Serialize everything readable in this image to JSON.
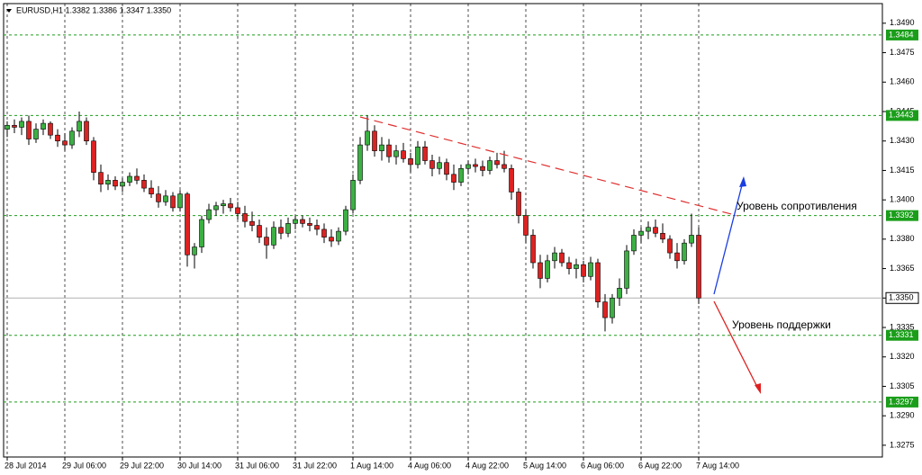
{
  "chart_data": {
    "type": "candlestick",
    "title": "EURUSD,H1  1.3382 1.3386 1.3347 1.3350",
    "up_color": "#3cb043",
    "down_color": "#dd2222",
    "ylim": [
      1.3269,
      1.35
    ],
    "yticks": [
      {
        "value": 1.349,
        "label": "1.3490"
      },
      1.3475,
      {
        "value": 1.346,
        "label": "1.3460"
      },
      1.3445,
      {
        "value": 1.343,
        "label": "1.3430"
      },
      1.3415,
      {
        "value": 1.34,
        "label": "1.3400"
      },
      {
        "value": 1.338,
        "label": "1.3380"
      },
      1.3365,
      {
        "value": 1.335,
        "label": "1.3350"
      },
      1.3335,
      {
        "value": 1.332,
        "label": "1.3320"
      },
      1.3305,
      {
        "value": 1.329,
        "label": "1.3290"
      },
      1.3275
    ],
    "levels": [
      {
        "value": 1.3484,
        "label": "1.3484"
      },
      1.3443,
      1.3392,
      1.3331,
      1.3297
    ],
    "level_color": "#1a9e1a",
    "current_price": {
      "value": 1.335,
      "label": "1.3350"
    },
    "annotations": [
      "Уровень сопротивления",
      "Уровень поддержки"
    ],
    "categories": [
      "28 Jul 2014",
      null,
      null,
      null,
      null,
      null,
      null,
      null,
      "29 Jul 06:00",
      null,
      null,
      null,
      null,
      null,
      null,
      null,
      "29 Jul 22:00",
      null,
      null,
      null,
      null,
      null,
      null,
      null,
      "30 Jul 14:00",
      null,
      null,
      null,
      null,
      null,
      null,
      null,
      "31 Jul 06:00",
      null,
      null,
      null,
      null,
      null,
      null,
      null,
      "31 Jul 22:00",
      null,
      null,
      null,
      null,
      null,
      null,
      null,
      "1 Aug 14:00",
      null,
      null,
      null,
      null,
      null,
      null,
      null,
      "4 Aug 06:00",
      null,
      null,
      null,
      null,
      null,
      null,
      null,
      "4 Aug 22:00",
      null,
      null,
      null,
      null,
      null,
      null,
      null,
      "5 Aug 14:00",
      null,
      null,
      null,
      null,
      null,
      null,
      null,
      "6 Aug 06:00",
      null,
      null,
      null,
      null,
      null,
      null,
      null,
      "6 Aug 22:00",
      null,
      null,
      null,
      null,
      null,
      null,
      null,
      "7 Aug 14:00"
    ],
    "ohlc": [
      [
        1.3436,
        1.344,
        1.3432,
        1.3438
      ],
      [
        1.3438,
        1.3441,
        1.3434,
        1.3437
      ],
      [
        1.3437,
        1.3442,
        1.3433,
        1.344
      ],
      [
        1.344,
        1.3443,
        1.3428,
        1.3431
      ],
      [
        1.3431,
        1.3439,
        1.3429,
        1.3436
      ],
      [
        1.3436,
        1.3441,
        1.3433,
        1.3439
      ],
      [
        1.3439,
        1.344,
        1.3431,
        1.3433
      ],
      [
        1.3433,
        1.3436,
        1.3427,
        1.343
      ],
      [
        1.343,
        1.3434,
        1.3425,
        1.3428
      ],
      [
        1.3428,
        1.3437,
        1.3426,
        1.3435
      ],
      [
        1.3435,
        1.3445,
        1.3432,
        1.344
      ],
      [
        1.344,
        1.3442,
        1.3428,
        1.343
      ],
      [
        1.343,
        1.3432,
        1.341,
        1.3414
      ],
      [
        1.3414,
        1.3418,
        1.3404,
        1.3408
      ],
      [
        1.3408,
        1.3413,
        1.3405,
        1.341
      ],
      [
        1.341,
        1.3412,
        1.3405,
        1.3407
      ],
      [
        1.3407,
        1.3411,
        1.3404,
        1.3409
      ],
      [
        1.3409,
        1.3414,
        1.3407,
        1.3412
      ],
      [
        1.3412,
        1.3416,
        1.3408,
        1.341
      ],
      [
        1.341,
        1.3413,
        1.3404,
        1.3406
      ],
      [
        1.3406,
        1.341,
        1.3401,
        1.3403
      ],
      [
        1.3403,
        1.3407,
        1.3396,
        1.3399
      ],
      [
        1.3399,
        1.3405,
        1.3397,
        1.3402
      ],
      [
        1.3402,
        1.3404,
        1.3394,
        1.3396
      ],
      [
        1.3396,
        1.3405,
        1.3394,
        1.3403
      ],
      [
        1.3403,
        1.3404,
        1.3366,
        1.3372
      ],
      [
        1.3372,
        1.3378,
        1.3365,
        1.3376
      ],
      [
        1.3376,
        1.3392,
        1.3373,
        1.339
      ],
      [
        1.339,
        1.3398,
        1.3388,
        1.3395
      ],
      [
        1.3395,
        1.3399,
        1.3392,
        1.3397
      ],
      [
        1.3397,
        1.34,
        1.3393,
        1.3398
      ],
      [
        1.3398,
        1.3401,
        1.3394,
        1.3396
      ],
      [
        1.3396,
        1.3399,
        1.339,
        1.3393
      ],
      [
        1.3393,
        1.3397,
        1.3386,
        1.3389
      ],
      [
        1.3389,
        1.3394,
        1.3384,
        1.3387
      ],
      [
        1.3387,
        1.339,
        1.3378,
        1.3381
      ],
      [
        1.3381,
        1.3386,
        1.337,
        1.3377
      ],
      [
        1.3377,
        1.3389,
        1.3375,
        1.3386
      ],
      [
        1.3386,
        1.339,
        1.338,
        1.3383
      ],
      [
        1.3383,
        1.3391,
        1.3381,
        1.3388
      ],
      [
        1.3388,
        1.3392,
        1.3385,
        1.339
      ],
      [
        1.339,
        1.3392,
        1.3386,
        1.3388
      ],
      [
        1.3388,
        1.3391,
        1.3384,
        1.3387
      ],
      [
        1.3387,
        1.339,
        1.3382,
        1.3385
      ],
      [
        1.3385,
        1.3388,
        1.3378,
        1.3381
      ],
      [
        1.3381,
        1.3385,
        1.3376,
        1.3379
      ],
      [
        1.3379,
        1.3386,
        1.3377,
        1.3384
      ],
      [
        1.3384,
        1.3397,
        1.3382,
        1.3395
      ],
      [
        1.3395,
        1.3413,
        1.3393,
        1.341
      ],
      [
        1.341,
        1.3432,
        1.3408,
        1.3428
      ],
      [
        1.3428,
        1.3443,
        1.3425,
        1.3435
      ],
      [
        1.3435,
        1.3438,
        1.3422,
        1.3425
      ],
      [
        1.3425,
        1.3432,
        1.342,
        1.3428
      ],
      [
        1.3428,
        1.3431,
        1.3419,
        1.3422
      ],
      [
        1.3422,
        1.3428,
        1.3418,
        1.3425
      ],
      [
        1.3425,
        1.3429,
        1.3419,
        1.3421
      ],
      [
        1.3421,
        1.3424,
        1.3414,
        1.3418
      ],
      [
        1.3418,
        1.343,
        1.3416,
        1.3427
      ],
      [
        1.3427,
        1.343,
        1.3418,
        1.342
      ],
      [
        1.342,
        1.3423,
        1.3412,
        1.3416
      ],
      [
        1.3416,
        1.3422,
        1.3413,
        1.3419
      ],
      [
        1.3419,
        1.3421,
        1.341,
        1.3413
      ],
      [
        1.3413,
        1.3418,
        1.3405,
        1.3409
      ],
      [
        1.3409,
        1.3418,
        1.3407,
        1.3416
      ],
      [
        1.3416,
        1.342,
        1.3413,
        1.3418
      ],
      [
        1.3418,
        1.3421,
        1.3414,
        1.3417
      ],
      [
        1.3417,
        1.342,
        1.3412,
        1.3415
      ],
      [
        1.3415,
        1.3422,
        1.3413,
        1.342
      ],
      [
        1.342,
        1.3424,
        1.3416,
        1.3418
      ],
      [
        1.3418,
        1.3425,
        1.3414,
        1.3416
      ],
      [
        1.3416,
        1.3418,
        1.34,
        1.3404
      ],
      [
        1.3404,
        1.3406,
        1.3388,
        1.3392
      ],
      [
        1.3392,
        1.3395,
        1.3378,
        1.3382
      ],
      [
        1.3382,
        1.3385,
        1.3365,
        1.3368
      ],
      [
        1.3368,
        1.3372,
        1.3355,
        1.336
      ],
      [
        1.336,
        1.3372,
        1.3358,
        1.3369
      ],
      [
        1.3369,
        1.3376,
        1.3365,
        1.3373
      ],
      [
        1.3373,
        1.3375,
        1.3366,
        1.3368
      ],
      [
        1.3368,
        1.3371,
        1.3362,
        1.3365
      ],
      [
        1.3365,
        1.337,
        1.336,
        1.3367
      ],
      [
        1.3367,
        1.3369,
        1.3358,
        1.3361
      ],
      [
        1.3361,
        1.3371,
        1.3359,
        1.3368
      ],
      [
        1.3368,
        1.337,
        1.3345,
        1.3348
      ],
      [
        1.3348,
        1.3352,
        1.3333,
        1.334
      ],
      [
        1.334,
        1.3352,
        1.3337,
        1.335
      ],
      [
        1.335,
        1.336,
        1.3346,
        1.3355
      ],
      [
        1.3355,
        1.3377,
        1.3352,
        1.3374
      ],
      [
        1.3374,
        1.3385,
        1.3372,
        1.3382
      ],
      [
        1.3382,
        1.3386,
        1.3378,
        1.3384
      ],
      [
        1.3384,
        1.3389,
        1.338,
        1.3386
      ],
      [
        1.3386,
        1.339,
        1.3381,
        1.3383
      ],
      [
        1.3383,
        1.3388,
        1.3378,
        1.338
      ],
      [
        1.338,
        1.3382,
        1.337,
        1.3373
      ],
      [
        1.3373,
        1.3378,
        1.3365,
        1.3369
      ],
      [
        1.3369,
        1.338,
        1.3367,
        1.3378
      ],
      [
        1.3378,
        1.3393,
        1.3376,
        1.3382
      ],
      [
        1.3382,
        1.3386,
        1.3347,
        1.335
      ]
    ]
  }
}
